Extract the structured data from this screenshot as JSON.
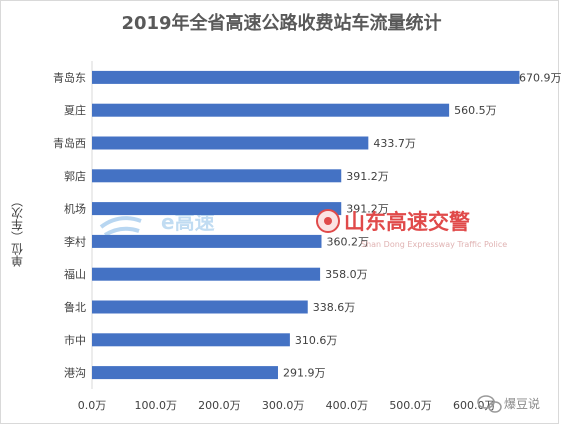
{
  "chart_data": {
    "type": "bar",
    "orientation": "horizontal",
    "title": "2019年全省高速公路收费站车流量统计",
    "ylabel": "单位（车次）",
    "categories": [
      "青岛东",
      "夏庄",
      "青岛西",
      "郭店",
      "机场",
      "李村",
      "福山",
      "鲁北",
      "市中",
      "港沟"
    ],
    "values": [
      670.9,
      560.5,
      433.7,
      391.2,
      391.2,
      360.2,
      358.0,
      338.6,
      310.6,
      291.9
    ],
    "data_labels": [
      "670.9万",
      "560.5万",
      "433.7万",
      "391.2万",
      "391.2万",
      "360.2万",
      "358.0万",
      "338.6万",
      "310.6万",
      "291.9万"
    ],
    "xlim": [
      0,
      700
    ],
    "xticks": [
      "0.0万",
      "100.0万",
      "200.0万",
      "300.0万",
      "400.0万",
      "500.0万",
      "600.0万"
    ],
    "bar_color": "#4472c4",
    "grid": false
  },
  "watermarks": {
    "ehigh": "e高速",
    "police": "山东高速交警",
    "police_sub": "Shan Dong Expressway Traffic Police",
    "wechat": "爆豆说"
  }
}
